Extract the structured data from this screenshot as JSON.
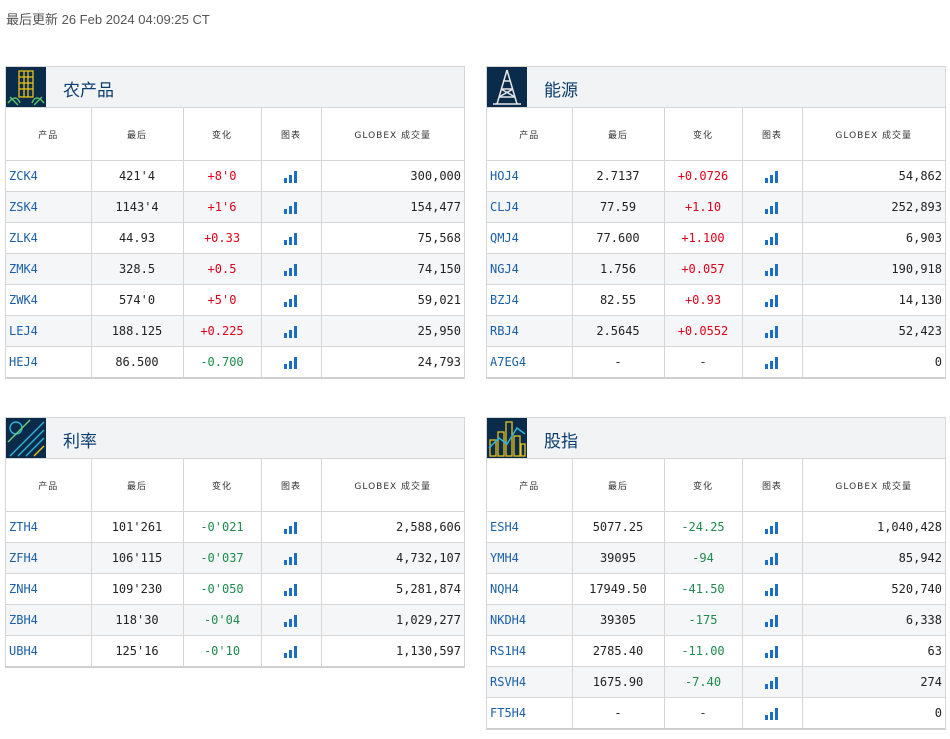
{
  "updated": "最后更新 26 Feb 2024 04:09:25 CT",
  "colors": {
    "up": "#e0001b",
    "down": "#1f8a4c",
    "code": "#1a5fa8",
    "header_icon_bg": "#0b2b4a"
  },
  "panels": [
    {
      "title": "农产品",
      "icon": "wheat-icon",
      "headers": [
        "产品",
        "最后",
        "变化",
        "图表",
        "GLOBEX 成交量"
      ],
      "rows": [
        {
          "code": "ZCK4",
          "last": "421'4",
          "change": "+8'0",
          "dir": "up",
          "volume": "300,000"
        },
        {
          "code": "ZSK4",
          "last": "1143'4",
          "change": "+1'6",
          "dir": "up",
          "volume": "154,477"
        },
        {
          "code": "ZLK4",
          "last": "44.93",
          "change": "+0.33",
          "dir": "up",
          "volume": "75,568"
        },
        {
          "code": "ZMK4",
          "last": "328.5",
          "change": "+0.5",
          "dir": "up",
          "volume": "74,150"
        },
        {
          "code": "ZWK4",
          "last": "574'0",
          "change": "+5'0",
          "dir": "up",
          "volume": "59,021"
        },
        {
          "code": "LEJ4",
          "last": "188.125",
          "change": "+0.225",
          "dir": "up",
          "volume": "25,950"
        },
        {
          "code": "HEJ4",
          "last": "86.500",
          "change": "-0.700",
          "dir": "down",
          "volume": "24,793"
        }
      ]
    },
    {
      "title": "能源",
      "icon": "oil-rig-icon",
      "headers": [
        "产品",
        "最后",
        "变化",
        "图表",
        "GLOBEX 成交量"
      ],
      "rows": [
        {
          "code": "HOJ4",
          "last": "2.7137",
          "change": "+0.0726",
          "dir": "up",
          "volume": "54,862"
        },
        {
          "code": "CLJ4",
          "last": "77.59",
          "change": "+1.10",
          "dir": "up",
          "volume": "252,893"
        },
        {
          "code": "QMJ4",
          "last": "77.600",
          "change": "+1.100",
          "dir": "up",
          "volume": "6,903"
        },
        {
          "code": "NGJ4",
          "last": "1.756",
          "change": "+0.057",
          "dir": "up",
          "volume": "190,918"
        },
        {
          "code": "BZJ4",
          "last": "82.55",
          "change": "+0.93",
          "dir": "up",
          "volume": "14,130"
        },
        {
          "code": "RBJ4",
          "last": "2.5645",
          "change": "+0.0552",
          "dir": "up",
          "volume": "52,423"
        },
        {
          "code": "A7EG4",
          "last": "-",
          "change": "-",
          "dir": "flat",
          "volume": "0"
        }
      ]
    },
    {
      "title": "利率",
      "icon": "interest-rate-icon",
      "headers": [
        "产品",
        "最后",
        "变化",
        "图表",
        "GLOBEX 成交量"
      ],
      "rows": [
        {
          "code": "ZTH4",
          "last": "101'261",
          "change": "-0'021",
          "dir": "down",
          "volume": "2,588,606"
        },
        {
          "code": "ZFH4",
          "last": "106'115",
          "change": "-0'037",
          "dir": "down",
          "volume": "4,732,107"
        },
        {
          "code": "ZNH4",
          "last": "109'230",
          "change": "-0'050",
          "dir": "down",
          "volume": "5,281,874"
        },
        {
          "code": "ZBH4",
          "last": "118'30",
          "change": "-0'04",
          "dir": "down",
          "volume": "1,029,277"
        },
        {
          "code": "UBH4",
          "last": "125'16",
          "change": "-0'10",
          "dir": "down",
          "volume": "1,130,597"
        }
      ]
    },
    {
      "title": "股指",
      "icon": "skyline-icon",
      "headers": [
        "产品",
        "最后",
        "变化",
        "图表",
        "GLOBEX 成交量"
      ],
      "rows": [
        {
          "code": "ESH4",
          "last": "5077.25",
          "change": "-24.25",
          "dir": "down",
          "volume": "1,040,428"
        },
        {
          "code": "YMH4",
          "last": "39095",
          "change": "-94",
          "dir": "down",
          "volume": "85,942"
        },
        {
          "code": "NQH4",
          "last": "17949.50",
          "change": "-41.50",
          "dir": "down",
          "volume": "520,740"
        },
        {
          "code": "NKDH4",
          "last": "39305",
          "change": "-175",
          "dir": "down",
          "volume": "6,338"
        },
        {
          "code": "RS1H4",
          "last": "2785.40",
          "change": "-11.00",
          "dir": "down",
          "volume": "63"
        },
        {
          "code": "RSVH4",
          "last": "1675.90",
          "change": "-7.40",
          "dir": "down",
          "volume": "274"
        },
        {
          "code": "FT5H4",
          "last": "-",
          "change": "-",
          "dir": "flat",
          "volume": "0"
        }
      ]
    }
  ]
}
